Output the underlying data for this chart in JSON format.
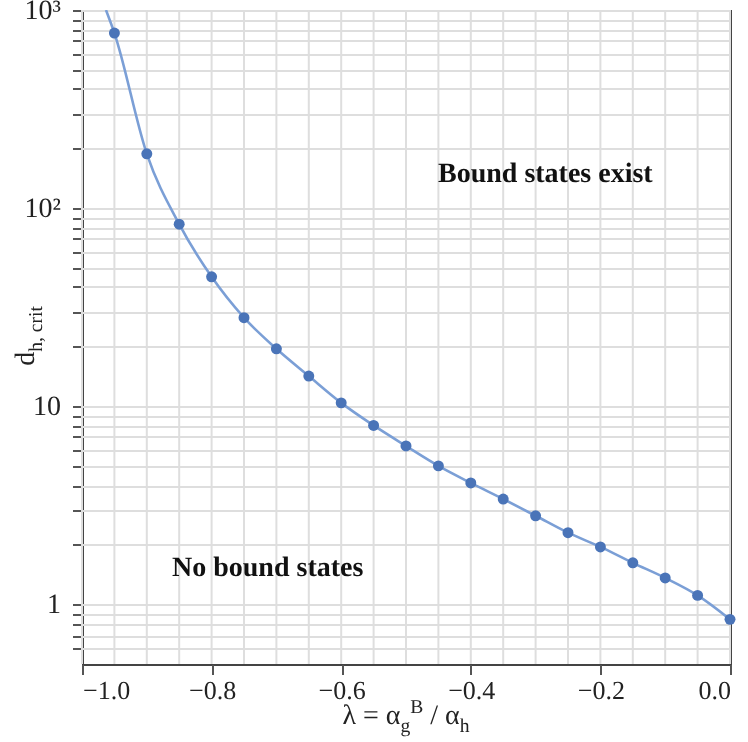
{
  "chart_data": {
    "type": "scatter",
    "xlabel": "λ = α$_{g}$$^{B}$ / α$_{h}$",
    "ylabel": "d$_{h, crit}$",
    "log": "y",
    "grid": true,
    "xlim": [
      -1.0,
      0.0
    ],
    "ylim": [
      0.5,
      1000
    ],
    "xticks": [
      {
        "value": -1.0,
        "label": "−1.0"
      },
      {
        "value": -0.95,
        "label": null
      },
      {
        "value": -0.9,
        "label": null
      },
      {
        "value": -0.85,
        "label": null
      },
      {
        "value": -0.8,
        "label": "−0.8"
      },
      {
        "value": -0.75,
        "label": null
      },
      {
        "value": -0.7,
        "label": null
      },
      {
        "value": -0.65,
        "label": null
      },
      {
        "value": -0.6,
        "label": "−0.6"
      },
      {
        "value": -0.55,
        "label": null
      },
      {
        "value": -0.5,
        "label": null
      },
      {
        "value": -0.45,
        "label": null
      },
      {
        "value": -0.4,
        "label": "−0.4"
      },
      {
        "value": -0.35,
        "label": null
      },
      {
        "value": -0.3,
        "label": null
      },
      {
        "value": -0.25,
        "label": null
      },
      {
        "value": -0.2,
        "label": "−0.2"
      },
      {
        "value": -0.15,
        "label": null
      },
      {
        "value": -0.1,
        "label": null
      },
      {
        "value": -0.05,
        "label": null
      },
      {
        "value": 0.0,
        "label": "0.0"
      }
    ],
    "yticks": [
      {
        "value": 0.6,
        "label": null
      },
      {
        "value": 0.7,
        "label": null
      },
      {
        "value": 0.8,
        "label": null
      },
      {
        "value": 0.9,
        "label": null
      },
      1,
      {
        "value": 2,
        "label": null
      },
      {
        "value": 3,
        "label": null
      },
      {
        "value": 4,
        "label": null
      },
      {
        "value": 5,
        "label": null
      },
      {
        "value": 6,
        "label": null
      },
      {
        "value": 7,
        "label": null
      },
      {
        "value": 8,
        "label": null
      },
      {
        "value": 9,
        "label": null
      },
      10,
      {
        "value": 20,
        "label": null
      },
      {
        "value": 30,
        "label": null
      },
      {
        "value": 40,
        "label": null
      },
      {
        "value": 50,
        "label": null
      },
      {
        "value": 60,
        "label": null
      },
      {
        "value": 70,
        "label": null
      },
      {
        "value": 80,
        "label": null
      },
      {
        "value": 90,
        "label": null
      },
      {
        "value": 100,
        "label": "10²"
      },
      {
        "value": 200,
        "label": null
      },
      {
        "value": 300,
        "label": null
      },
      {
        "value": 400,
        "label": null
      },
      {
        "value": 500,
        "label": null
      },
      {
        "value": 600,
        "label": null
      },
      {
        "value": 700,
        "label": null
      },
      {
        "value": 800,
        "label": null
      },
      {
        "value": 900,
        "label": null
      },
      {
        "value": 1000,
        "label": "10³"
      }
    ],
    "series": [
      {
        "type": "line",
        "color": "#7b9fd6",
        "marker": "none",
        "x": [
          -0.963,
          -0.95,
          -0.9,
          -0.85,
          -0.8,
          -0.75,
          -0.7,
          -0.65,
          -0.6,
          -0.55,
          -0.5,
          -0.45,
          -0.4,
          -0.35,
          -0.3,
          -0.25,
          -0.2,
          -0.15,
          -0.1,
          -0.05,
          0.0
        ],
        "values": [
          1000,
          765,
          188,
          83,
          45,
          28,
          19.5,
          14.2,
          10.4,
          8.0,
          6.3,
          5.0,
          4.1,
          3.4,
          2.8,
          2.3,
          1.95,
          1.62,
          1.36,
          1.11,
          0.84
        ]
      },
      {
        "color": "#4a74b8",
        "marker": "circle",
        "x": [
          -0.95,
          -0.9,
          -0.85,
          -0.8,
          -0.75,
          -0.7,
          -0.65,
          -0.6,
          -0.55,
          -0.5,
          -0.45,
          -0.4,
          -0.35,
          -0.3,
          -0.25,
          -0.2,
          -0.15,
          -0.1,
          -0.05,
          0.0
        ],
        "values": [
          765,
          188,
          83,
          45,
          28,
          19.5,
          14.2,
          10.4,
          8.0,
          6.3,
          5.0,
          4.1,
          3.4,
          2.8,
          2.3,
          1.95,
          1.62,
          1.36,
          1.11,
          0.84
        ]
      }
    ],
    "annotations": [
      "Bound states exist",
      "No bound states"
    ]
  }
}
